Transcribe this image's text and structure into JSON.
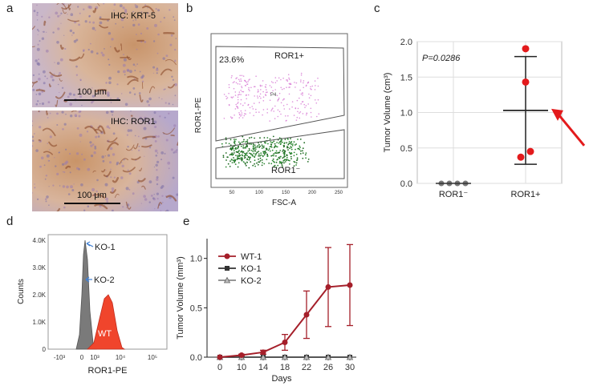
{
  "panels": {
    "a": {
      "letter": "a",
      "top_label": "IHC: KRT-5",
      "bottom_label": "IHC: ROR1",
      "scale_top": "100 μm",
      "scale_bottom": "100 μm"
    },
    "b": {
      "letter": "b",
      "percent": "23.6%",
      "gate_high": "ROR1+",
      "gate_low": "ROR1⁻",
      "gate_p4": "P4",
      "ylabel": "ROR1-PE",
      "xlabel": "FSC-A",
      "xticks": [
        "50",
        "100",
        "150",
        "200",
        "250"
      ]
    },
    "d": {
      "letter": "d",
      "ylabel": "Counts",
      "xlabel": "ROR1-PE",
      "ko1": "KO-1",
      "ko2": "KO-2",
      "wt": "WT",
      "yticks": [
        "0",
        "1.0K",
        "2.0K",
        "3.0K",
        "4.0K"
      ],
      "xticks": [
        "-10³",
        "0",
        "10³",
        "10⁴",
        "10⁵"
      ]
    },
    "c_letter": "c",
    "e_letter": "e"
  },
  "colors": {
    "red": "#e31a1c",
    "darkred": "#a51f2a",
    "gray": "#888888",
    "green": "#2e7d2e",
    "magenta": "#d46fd0"
  },
  "chart_data": [
    {
      "type": "scatter",
      "panel": "c",
      "ylabel": "Tumor Volume (cm³)",
      "categories": [
        "ROR1⁻",
        "ROR1+"
      ],
      "ylim": [
        0,
        2.0
      ],
      "yticks": [
        "0.0",
        "0.5",
        "1.0",
        "1.5",
        "2.0"
      ],
      "annotation": "P=0.0286",
      "series": [
        {
          "category": "ROR1⁻",
          "values": [
            0,
            0,
            0,
            0
          ],
          "mean": 0,
          "sd": 0
        },
        {
          "category": "ROR1+",
          "values": [
            1.9,
            1.43,
            0.45,
            0.37
          ],
          "mean": 1.03,
          "sd": 0.76
        }
      ]
    },
    {
      "type": "line",
      "panel": "e",
      "xlabel": "Days",
      "ylabel": "Tumor Volume (mm³)",
      "x": [
        0,
        10,
        14,
        18,
        22,
        26,
        30
      ],
      "ylim": [
        0,
        1.2
      ],
      "yticks": [
        "0.0",
        "0.5",
        "1.0"
      ],
      "series": [
        {
          "name": "WT-1",
          "values": [
            0,
            0.02,
            0.05,
            0.15,
            0.43,
            0.71,
            0.73
          ],
          "err": [
            0,
            0.01,
            0.02,
            0.08,
            0.24,
            0.4,
            0.41
          ]
        },
        {
          "name": "KO-1",
          "values": [
            0,
            0,
            0,
            0,
            0,
            0,
            0
          ]
        },
        {
          "name": "KO-2",
          "values": [
            0,
            0,
            0,
            0,
            0,
            0,
            0
          ]
        }
      ]
    }
  ]
}
